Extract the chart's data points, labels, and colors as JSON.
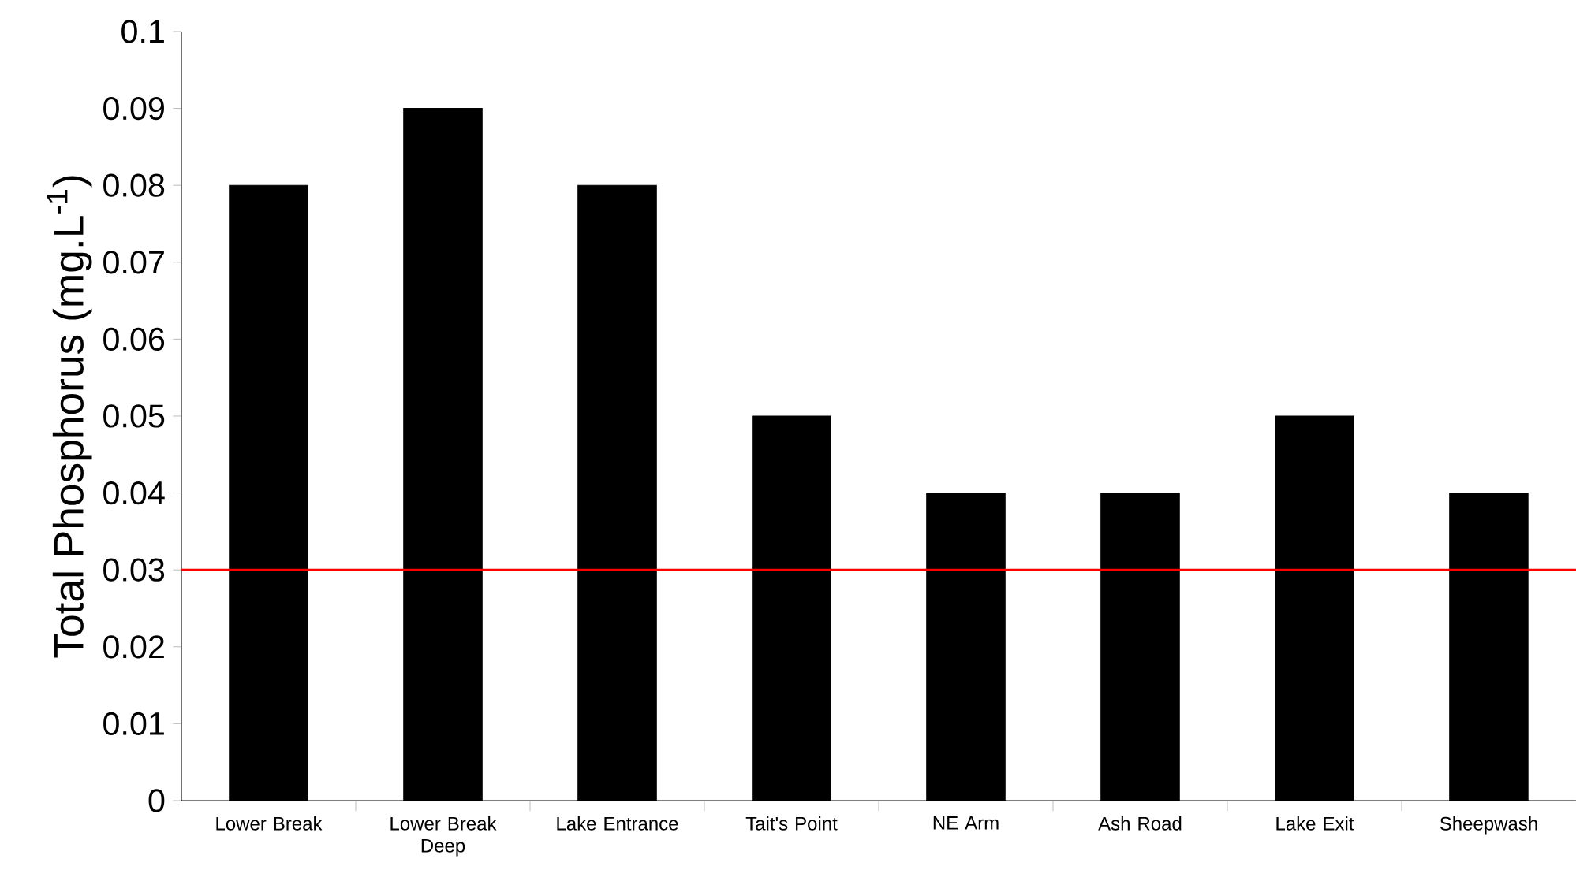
{
  "chart_data": {
    "type": "bar",
    "ylabel": "Total Phosphorus (mg.L$^{-1}$)",
    "categories": [
      "Lower Break",
      "Lower Break Deep",
      "Lake Entrance",
      "Tait's Point",
      "NE Arm",
      "Ash Road",
      "Lake Exit",
      "Sheepwash"
    ],
    "values": [
      0.08,
      0.09,
      0.08,
      0.05,
      0.04,
      0.04,
      0.05,
      0.04
    ],
    "color": "#000000",
    "ylim": [
      0,
      0.1
    ],
    "yticks": [
      0,
      0.01,
      0.02,
      0.03,
      0.04,
      0.05,
      0.06,
      0.07,
      0.08,
      0.09,
      0.1
    ],
    "ref_lines": [
      {
        "axis": "y",
        "value": 0.03,
        "color": "#ff0000"
      }
    ]
  }
}
